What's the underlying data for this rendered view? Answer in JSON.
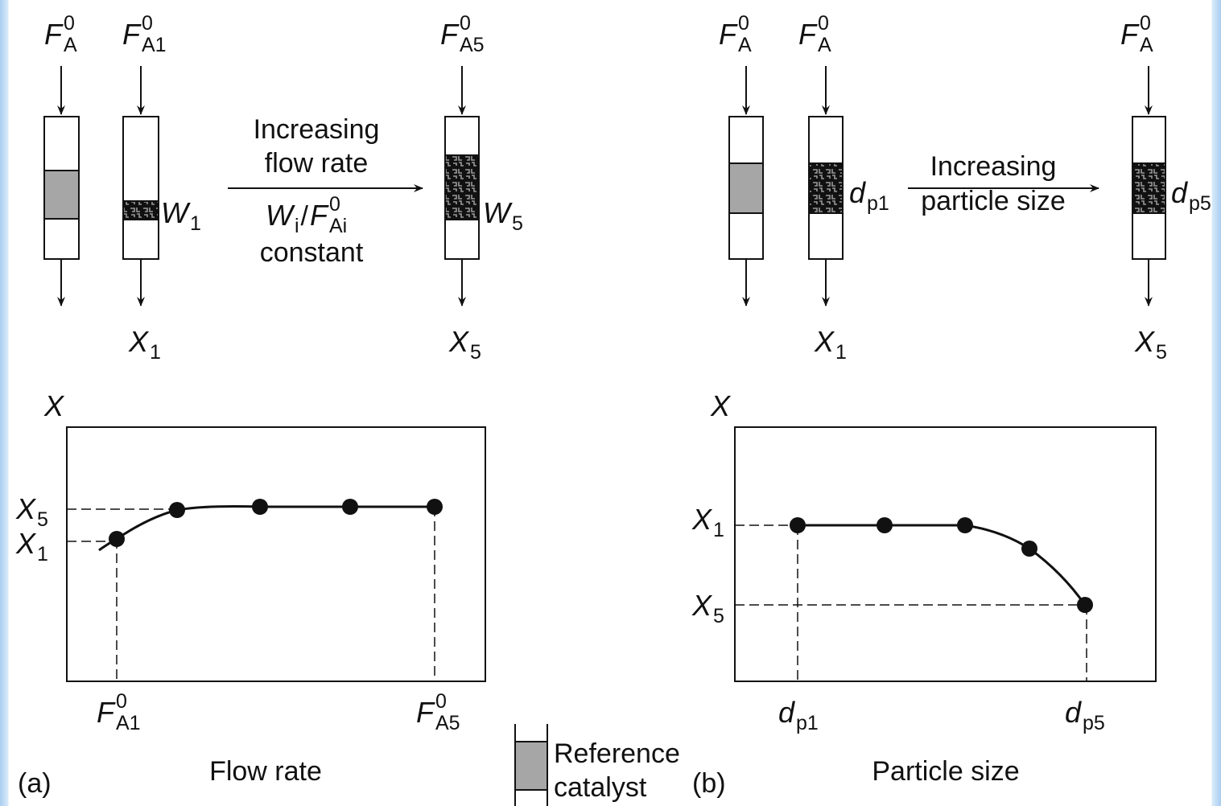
{
  "panel_a": {
    "reactors": [
      {
        "feed": {
          "main": "F",
          "sup": "0",
          "sub": "A"
        }
      },
      {
        "feed": {
          "main": "F",
          "sup": "0",
          "sub": "A1"
        },
        "bed": {
          "main": "W",
          "sub": "1"
        },
        "outlet": {
          "main": "X",
          "sub": "1"
        }
      },
      {
        "feed": {
          "main": "F",
          "sup": "0",
          "sub": "A5"
        },
        "bed": {
          "main": "W",
          "sub": "5"
        },
        "outlet": {
          "main": "X",
          "sub": "5"
        }
      }
    ],
    "arrow_text": [
      "Increasing",
      "flow rate"
    ],
    "ratio": {
      "numerator": {
        "main": "W",
        "sub": "i"
      },
      "slash": "/",
      "denominator": {
        "main": "F",
        "sup": "0",
        "sub": "Ai"
      }
    },
    "constant": "constant",
    "plot": {
      "y_title": "X",
      "yticks": [
        {
          "main": "X",
          "sub": "5"
        },
        {
          "main": "X",
          "sub": "1"
        }
      ],
      "xticks": [
        {
          "main": "F",
          "sup": "0",
          "sub": "A1"
        },
        {
          "main": "F",
          "sup": "0",
          "sub": "A5"
        }
      ],
      "x_title": "Flow rate"
    },
    "tag": "(a)"
  },
  "legend": {
    "lines": [
      "Reference",
      "catalyst"
    ]
  },
  "panel_b": {
    "reactors": [
      {
        "feed": {
          "main": "F",
          "sup": "0",
          "sub": "A"
        }
      },
      {
        "feed": {
          "main": "F",
          "sup": "0",
          "sub": "A"
        },
        "bed": {
          "main": "d",
          "sub": "p1"
        },
        "outlet": {
          "main": "X",
          "sub": "1"
        }
      },
      {
        "feed": {
          "main": "F",
          "sup": "0",
          "sub": "A"
        },
        "bed": {
          "main": "d",
          "sub": "p5"
        },
        "outlet": {
          "main": "X",
          "sub": "5"
        }
      }
    ],
    "arrow_text": [
      "Increasing",
      "particle size"
    ],
    "plot": {
      "y_title": "X",
      "yticks": [
        {
          "main": "X",
          "sub": "1"
        },
        {
          "main": "X",
          "sub": "5"
        }
      ],
      "xticks": [
        {
          "main": "d",
          "sub": "p1"
        },
        {
          "main": "d",
          "sub": "p5"
        }
      ],
      "x_title": "Particle size"
    },
    "tag": "(b)"
  }
}
